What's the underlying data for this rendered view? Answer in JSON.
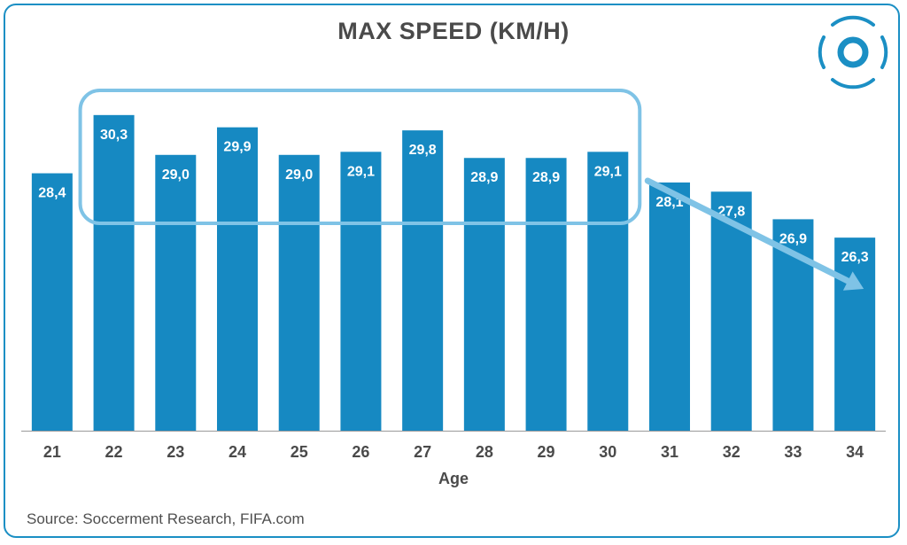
{
  "chart_data": {
    "type": "bar",
    "title": "MAX SPEED (KM/H)",
    "xlabel": "Age",
    "ylabel": "",
    "categories": [
      "21",
      "22",
      "23",
      "24",
      "25",
      "26",
      "27",
      "28",
      "29",
      "30",
      "31",
      "32",
      "33",
      "34"
    ],
    "values": [
      28.4,
      30.3,
      29.0,
      29.9,
      29.0,
      29.1,
      29.8,
      28.9,
      28.9,
      29.1,
      28.1,
      27.8,
      26.9,
      26.3
    ],
    "value_labels": [
      "28,4",
      "30,3",
      "29,0",
      "29,9",
      "29,0",
      "29,1",
      "29,8",
      "28,9",
      "28,9",
      "29,1",
      "28,1",
      "27,8",
      "26,9",
      "26,3"
    ],
    "ylim": [
      20.0,
      30.7
    ],
    "grid": false,
    "highlight_box": {
      "from_category": "22",
      "to_category": "30"
    },
    "trend_arrow": {
      "from_category": "30",
      "to_category": "34"
    }
  },
  "source": "Source: Soccerment Research, FIFA.com",
  "colors": {
    "bar": "#1689c2",
    "accent": "#7fc3e6",
    "frame": "#1b8fc4",
    "label": "#ffffff",
    "text": "#4a4a4a"
  },
  "logo": {
    "icon": "soccerment-ball-icon"
  }
}
